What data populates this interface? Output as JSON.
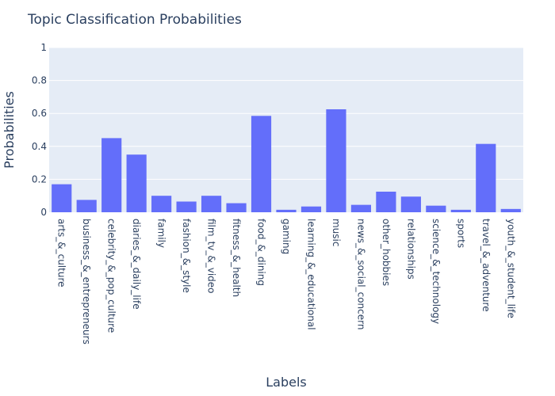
{
  "chart_data": {
    "type": "bar",
    "title": "Topic Classification Probabilities",
    "xlabel": "Labels",
    "ylabel": "Probabilities",
    "ylim": [
      0,
      1
    ],
    "yticks": [
      "0",
      "0.2",
      "0.4",
      "0.6",
      "0.8",
      "1"
    ],
    "grid": true,
    "categories": [
      "arts_&_culture",
      "business_&_entrepreneurs",
      "celebrity_&_pop_culture",
      "diaries_&_daily_life",
      "family",
      "fashion_&_style",
      "film_tv_&_video",
      "fitness_&_health",
      "food_&_dining",
      "gaming",
      "learning_&_educational",
      "music",
      "news_&_social_concern",
      "other_hobbies",
      "relationships",
      "science_&_technology",
      "sports",
      "travel_&_adventure",
      "youth_&_student_life"
    ],
    "values": [
      0.17,
      0.075,
      0.45,
      0.35,
      0.1,
      0.065,
      0.1,
      0.055,
      0.585,
      0.015,
      0.035,
      0.625,
      0.045,
      0.125,
      0.095,
      0.04,
      0.015,
      0.415,
      0.02
    ],
    "colors": {
      "bar": "#636efa",
      "plot_bg": "#e5ecf6",
      "grid": "#ffffff",
      "text": "#2a3f5f"
    }
  }
}
